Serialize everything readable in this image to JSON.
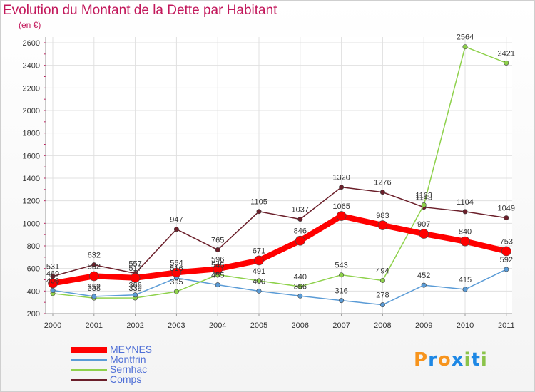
{
  "title": "Evolution du Montant de la Dette par Habitant",
  "unit": "(en €)",
  "logo": {
    "text": "Proxiti",
    "colors": [
      "#f7941d",
      "#1e88e5",
      "#f7941d",
      "#1e88e5",
      "#8bc34a",
      "#1e88e5",
      "#8bc34a"
    ]
  },
  "chart_data": {
    "type": "line",
    "x": [
      "2000",
      "2001",
      "2002",
      "2003",
      "2004",
      "2005",
      "2006",
      "2007",
      "2008",
      "2009",
      "2010",
      "2011"
    ],
    "ylim": [
      200,
      2600
    ],
    "yticks": [
      200,
      400,
      600,
      800,
      1000,
      1200,
      1400,
      1600,
      1800,
      2000,
      2200,
      2400,
      2600
    ],
    "grid": true,
    "legend_position": "bottom-left",
    "series": [
      {
        "name": "Comps",
        "color": "#6b1f2a",
        "width": 1.5,
        "values": [
          531,
          632,
          557,
          947,
          765,
          1105,
          1037,
          1320,
          1276,
          1143,
          1104,
          1049
        ],
        "labels": [
          "531",
          "632",
          "557",
          "947",
          "765",
          "1105",
          "1037",
          "1320",
          "1276",
          "1143",
          "1104",
          "1049"
        ]
      },
      {
        "name": "Sernhac",
        "color": "#8ed14b",
        "width": 1.5,
        "values": [
          378,
          338,
          339,
          395,
          545,
          491,
          440,
          543,
          494,
          1163,
          2564,
          2421
        ],
        "labels": [
          "",
          "338",
          "339",
          "395",
          "545",
          "491",
          "440",
          "543",
          "494",
          "1163",
          "2564",
          "2421"
        ]
      },
      {
        "name": "Montfrin",
        "color": "#5a9bd6",
        "width": 1.5,
        "values": [
          406,
          352,
          366,
          516,
          455,
          400,
          356,
          316,
          278,
          452,
          415,
          592
        ],
        "labels": [
          "406",
          "352",
          "366",
          "516",
          "455",
          "400",
          "356",
          "316",
          "278",
          "452",
          "415",
          "592"
        ]
      },
      {
        "name": "MEYNES",
        "color": "#ff0000",
        "width": 8,
        "values": [
          469,
          532,
          517,
          564,
          596,
          671,
          846,
          1065,
          983,
          907,
          840,
          753
        ],
        "labels": [
          "469",
          "532",
          "517",
          "564",
          "596",
          "671",
          "846",
          "1065",
          "983",
          "907",
          "840",
          "753"
        ]
      }
    ],
    "legend_order": [
      "MEYNES",
      "Montfrin",
      "Sernhac",
      "Comps"
    ]
  }
}
